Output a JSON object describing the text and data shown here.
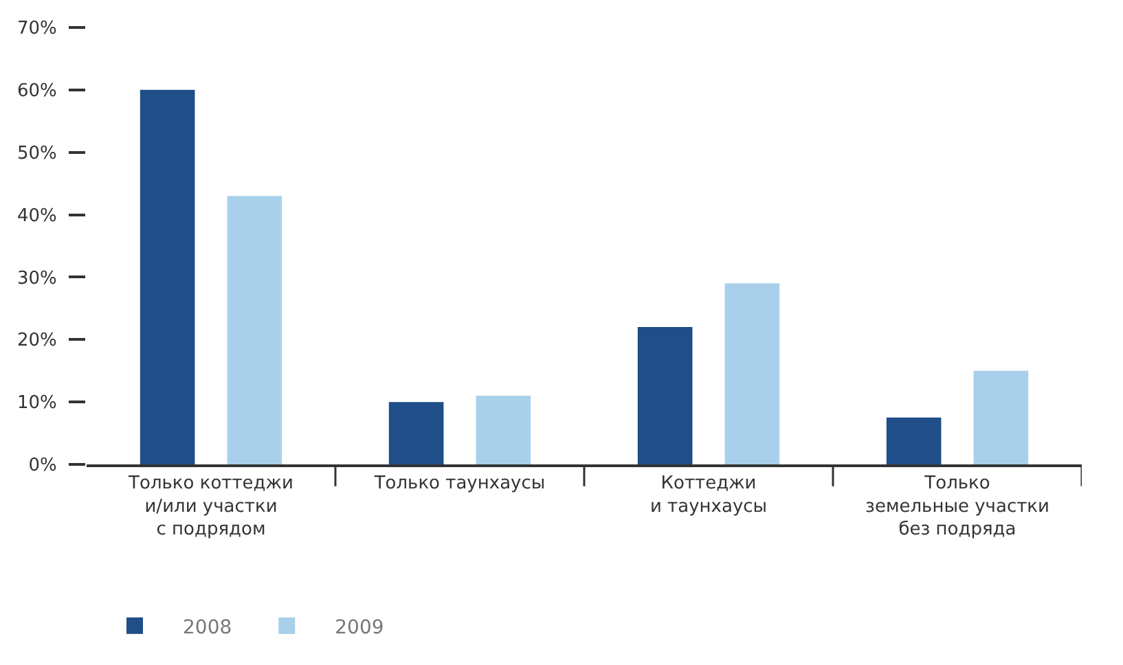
{
  "chart_data": {
    "type": "bar",
    "categories": [
      "Только коттеджи\nи/или участки\nс подрядом",
      "Только таунхаусы",
      "Коттеджи\nи таунхаусы",
      "Только\nземельные участки\nбез подряда"
    ],
    "series": [
      {
        "name": "2008",
        "color": "#1f4e89",
        "values": [
          60,
          10,
          22,
          7.5
        ]
      },
      {
        "name": "2009",
        "color": "#a8d0ea",
        "values": [
          43,
          11,
          29,
          15
        ]
      }
    ],
    "ylim": [
      0,
      70
    ],
    "yticks": [
      {
        "value": 0,
        "label": "0%"
      },
      {
        "value": 10,
        "label": "10%"
      },
      {
        "value": 20,
        "label": "20%"
      },
      {
        "value": 30,
        "label": "30%"
      },
      {
        "value": 40,
        "label": "40%"
      },
      {
        "value": 50,
        "label": "50%"
      },
      {
        "value": 60,
        "label": "60%"
      },
      {
        "value": 70,
        "label": "70%"
      }
    ],
    "grid": false,
    "legend": "bottom left"
  }
}
